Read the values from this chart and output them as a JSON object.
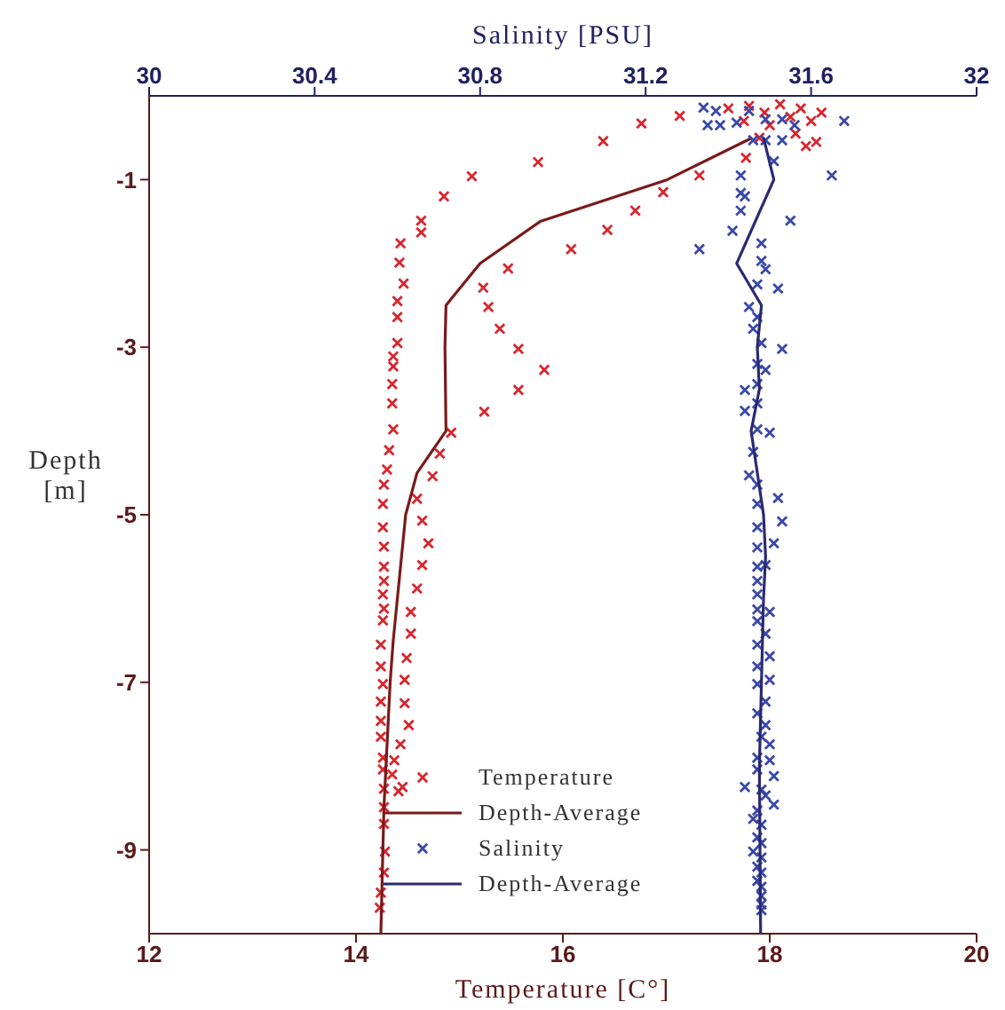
{
  "chart_data": {
    "type": "scatter",
    "xlabel": "Temperature [C°]",
    "x2label": "Salinity [PSU]",
    "ylabel": "Depth [m]",
    "xlim": [
      12,
      20
    ],
    "xticks": [
      12,
      14,
      16,
      18,
      20
    ],
    "x2lim": [
      30,
      32
    ],
    "x2ticks": [
      30,
      30.4,
      30.8,
      31.2,
      31.6,
      32
    ],
    "ylim": [
      -10,
      0
    ],
    "yticks": [
      -1,
      -3,
      -5,
      -7,
      -9
    ],
    "legend": "bottom",
    "marker": "cross",
    "series": [
      {
        "name": "Temperature",
        "color": "#d7262e",
        "x": [
          17.6,
          17.8,
          17.95,
          18.1,
          18.2,
          18.3,
          18.4,
          18.5,
          18.0,
          18.25,
          18.45,
          17.9,
          18.35,
          17.75,
          17.13,
          16.76,
          16.39,
          15.76,
          15.12,
          17.77,
          17.32,
          16.97,
          16.7,
          16.43,
          14.85,
          14.63,
          14.63,
          14.43,
          14.42,
          14.46,
          14.4,
          14.4,
          14.4,
          14.36,
          14.36,
          14.35,
          14.35,
          14.36,
          14.32,
          14.3,
          14.27,
          14.26,
          14.26,
          14.27,
          14.27,
          14.27,
          14.26,
          14.27,
          14.26,
          14.24,
          14.24,
          14.26,
          14.24,
          14.24,
          14.24,
          14.26,
          14.26,
          14.27,
          14.27,
          14.27,
          14.28,
          14.27,
          14.24,
          14.23,
          16.08,
          15.47,
          15.23,
          15.28,
          15.39,
          15.57,
          15.82,
          15.57,
          15.24,
          14.92,
          14.81,
          14.74,
          14.59,
          14.64,
          14.7,
          14.64,
          14.59,
          14.53,
          14.53,
          14.49,
          14.47,
          14.47,
          14.51,
          14.43,
          14.37,
          14.35,
          14.45,
          14.41
        ],
        "values": [
          -0.15,
          -0.12,
          -0.2,
          -0.1,
          -0.25,
          -0.15,
          -0.3,
          -0.2,
          -0.35,
          -0.45,
          -0.55,
          -0.5,
          -0.6,
          -0.3,
          -0.24,
          -0.33,
          -0.54,
          -0.79,
          -0.96,
          -0.74,
          -0.95,
          -1.15,
          -1.37,
          -1.6,
          -1.2,
          -1.49,
          -1.63,
          -1.76,
          -1.99,
          -2.24,
          -2.45,
          -2.64,
          -2.95,
          -3.11,
          -3.23,
          -3.44,
          -3.67,
          -3.98,
          -4.23,
          -4.46,
          -4.64,
          -4.87,
          -5.15,
          -5.38,
          -5.62,
          -5.79,
          -5.95,
          -6.12,
          -6.26,
          -6.55,
          -6.81,
          -7.02,
          -7.23,
          -7.46,
          -7.65,
          -7.9,
          -8.04,
          -8.27,
          -8.49,
          -8.69,
          -9.02,
          -9.27,
          -9.51,
          -9.69,
          -1.83,
          -2.06,
          -2.29,
          -2.52,
          -2.78,
          -3.02,
          -3.27,
          -3.51,
          -3.77,
          -4.02,
          -4.27,
          -4.54,
          -4.81,
          -5.07,
          -5.34,
          -5.6,
          -5.88,
          -6.16,
          -6.42,
          -6.71,
          -6.97,
          -7.25,
          -7.51,
          -7.74,
          -7.93,
          -8.1,
          -8.25,
          -8.3
        ]
      },
      {
        "name": "Depth-Average",
        "type": "line",
        "marker": "none",
        "color": "#7b1a1a",
        "x": [
          17.83,
          17.01,
          15.78,
          15.2,
          14.87,
          14.86,
          14.87,
          14.59,
          14.48,
          14.44,
          14.4,
          14.36,
          14.33,
          14.31,
          14.29,
          14.27,
          14.26,
          14.25,
          14.24
        ],
        "values": [
          -0.5,
          -1,
          -1.5,
          -2,
          -2.5,
          -3,
          -4,
          -4.5,
          -5,
          -5.5,
          -6,
          -6.5,
          -7,
          -7.5,
          -8,
          -8.5,
          -9,
          -9.5,
          -10
        ]
      },
      {
        "name": "Salinity",
        "axis": "x2",
        "color": "#3a48a8",
        "x": [
          31.34,
          31.37,
          31.35,
          31.38,
          31.42,
          31.45,
          31.49,
          31.53,
          31.56,
          31.68,
          31.46,
          31.49,
          31.53,
          31.51,
          31.65,
          31.43,
          31.43,
          31.44,
          31.43,
          31.55,
          31.41,
          31.33,
          31.48,
          31.48,
          31.49,
          31.52,
          31.47,
          31.45,
          31.47,
          31.46,
          31.48,
          31.53,
          31.47,
          31.49,
          31.47,
          31.44,
          31.47,
          31.44,
          31.47,
          31.5,
          31.46,
          31.45,
          31.47,
          31.52,
          31.47,
          31.53,
          31.47,
          31.51,
          31.47,
          31.47,
          31.49,
          31.47,
          31.47,
          31.47,
          31.5,
          31.47,
          31.49,
          31.47,
          31.5,
          31.47,
          31.5,
          31.47,
          31.49,
          31.47,
          31.49,
          31.48,
          31.5,
          31.47,
          31.5,
          31.47,
          31.51,
          31.44,
          31.48,
          31.49,
          31.51,
          31.47,
          31.46,
          31.48,
          31.47,
          31.48,
          31.46,
          31.48,
          31.47,
          31.48,
          31.47,
          31.48,
          31.48,
          31.48,
          31.48
        ],
        "values": [
          -0.14,
          -0.18,
          -0.35,
          -0.35,
          -0.32,
          -0.18,
          -0.28,
          -0.28,
          -0.35,
          -0.3,
          -0.53,
          -0.53,
          -0.53,
          -0.78,
          -0.95,
          -0.95,
          -1.16,
          -1.2,
          -1.37,
          -1.49,
          -1.61,
          -1.83,
          -1.76,
          -1.97,
          -2.07,
          -2.3,
          -2.25,
          -2.52,
          -2.64,
          -2.78,
          -2.95,
          -3.02,
          -3.2,
          -3.27,
          -3.44,
          -3.51,
          -3.67,
          -3.76,
          -3.98,
          -4.02,
          -4.25,
          -4.53,
          -4.64,
          -4.8,
          -4.87,
          -5.08,
          -5.15,
          -5.34,
          -5.39,
          -5.62,
          -5.6,
          -5.79,
          -5.95,
          -6.13,
          -6.16,
          -6.27,
          -6.42,
          -6.55,
          -6.69,
          -6.81,
          -6.97,
          -7.02,
          -7.23,
          -7.37,
          -7.51,
          -7.65,
          -7.74,
          -7.9,
          -7.93,
          -8.04,
          -8.12,
          -8.25,
          -8.28,
          -8.35,
          -8.46,
          -8.53,
          -8.63,
          -8.7,
          -8.85,
          -8.92,
          -9.02,
          -9.09,
          -9.2,
          -9.27,
          -9.37,
          -9.44,
          -9.55,
          -9.65,
          -9.72
        ]
      },
      {
        "name": "Depth-Average",
        "type": "line",
        "marker": "none",
        "axis": "x2",
        "color": "#2a2a72",
        "x": [
          31.485,
          31.51,
          31.42,
          31.48,
          31.47,
          31.475,
          31.455,
          31.47,
          31.485,
          31.49,
          31.485,
          31.48,
          31.475,
          31.478
        ],
        "values": [
          -0.5,
          -1,
          -2,
          -2.5,
          -3,
          -3.5,
          -4,
          -4.5,
          -5,
          -5.5,
          -6,
          -7,
          -8,
          -10
        ]
      }
    ]
  }
}
